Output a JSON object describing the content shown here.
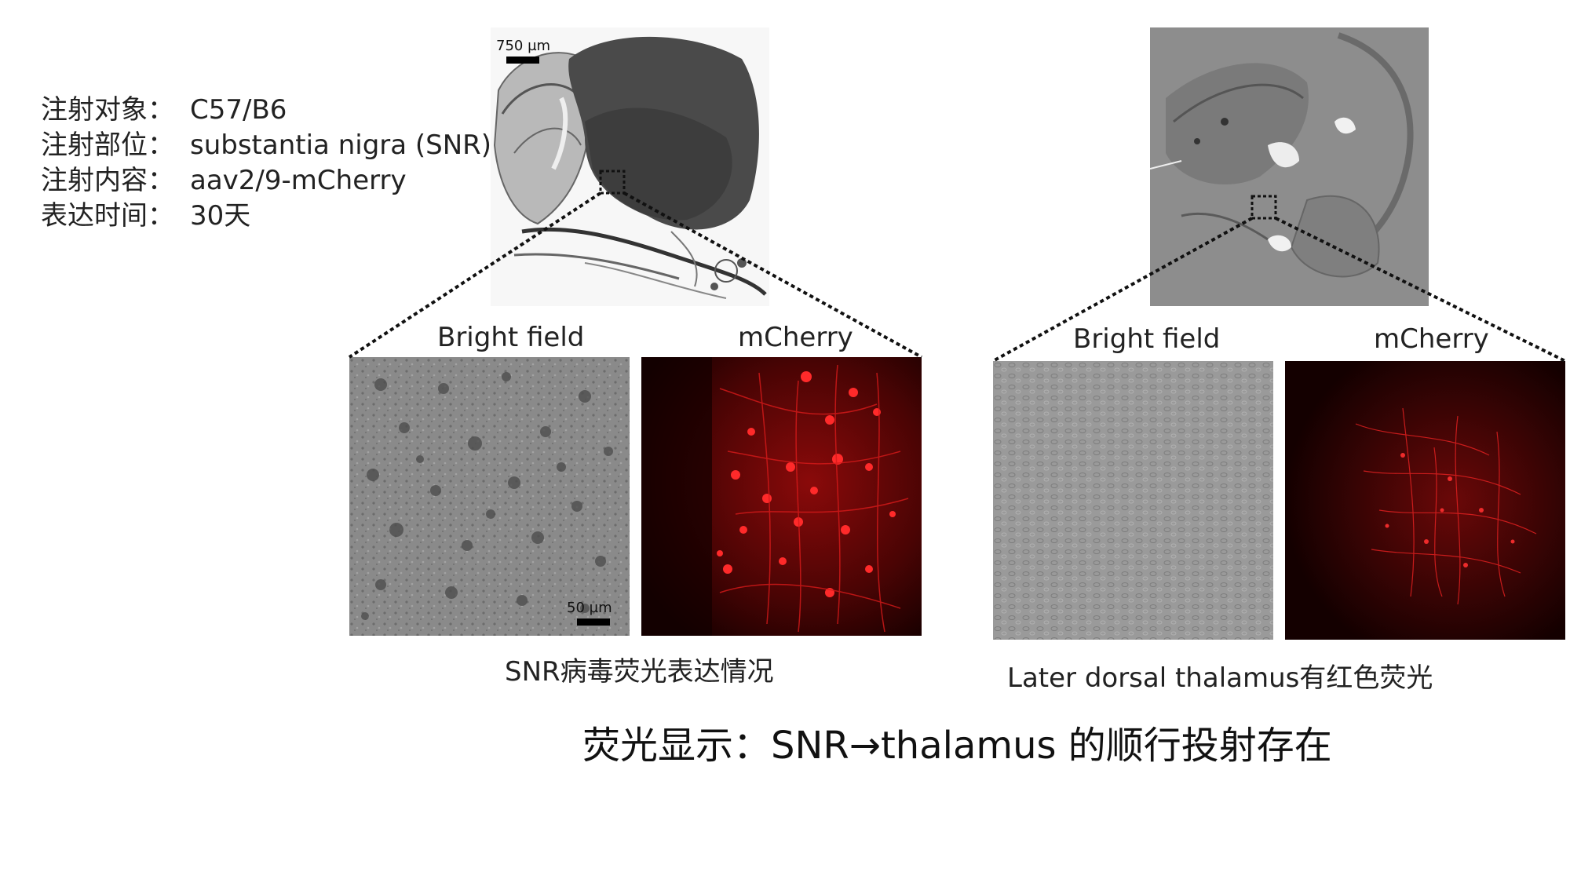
{
  "info": [
    {
      "label": "注射对象：",
      "value": "C57/B6"
    },
    {
      "label": "注射部位：",
      "value": "substantia nigra (SNR)"
    },
    {
      "label": "注射内容：",
      "value": "aav2/9-mCherry"
    },
    {
      "label": "表达时间：",
      "value": "30天"
    }
  ],
  "left_group": {
    "overview_scale": "750 µm",
    "bright_label": "Bright field",
    "mcherry_label": "mCherry",
    "micro_scale": "50 µm",
    "caption": "SNR病毒荧光表达情况"
  },
  "right_group": {
    "bright_label": "Bright field",
    "mcherry_label": "mCherry",
    "caption": "Later dorsal thalamus有红色荧光"
  },
  "conclusion": "荧光显示：SNR→thalamus 的顺行投射存在"
}
